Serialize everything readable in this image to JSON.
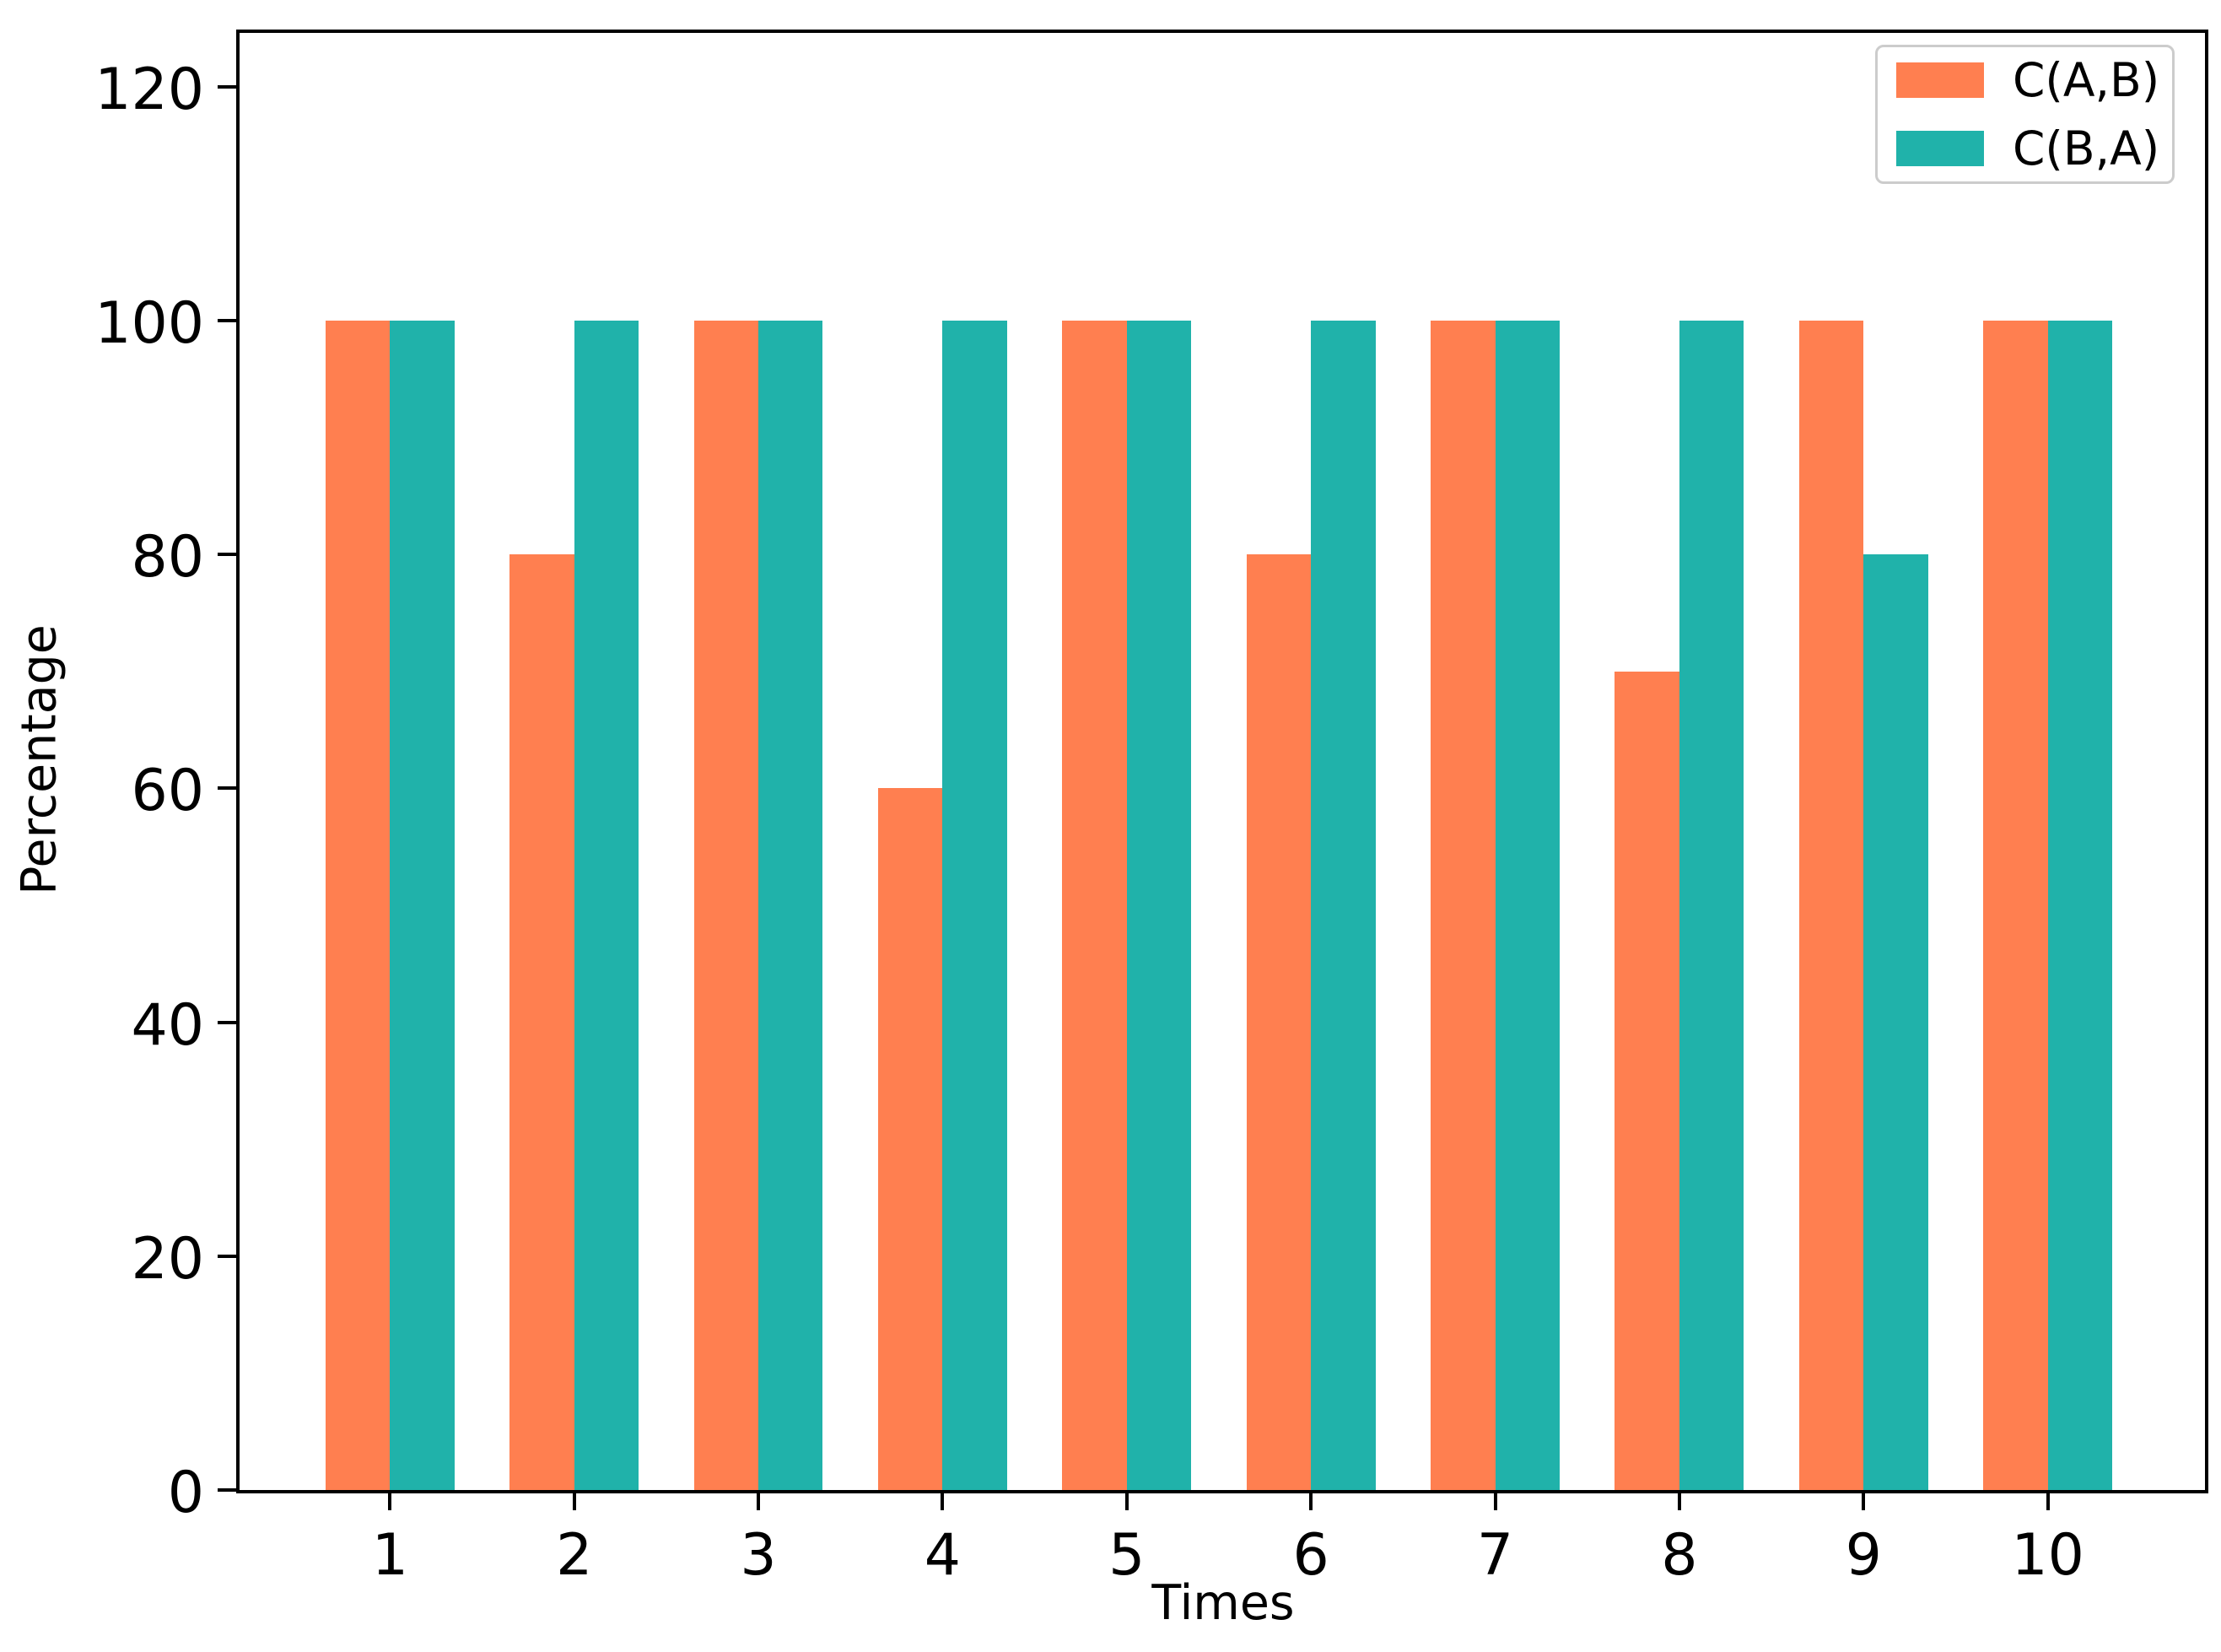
{
  "chart_data": {
    "type": "bar",
    "title": "",
    "xlabel": "Times",
    "ylabel": "Percentage",
    "categories": [
      "1",
      "2",
      "3",
      "4",
      "5",
      "6",
      "7",
      "8",
      "9",
      "10"
    ],
    "series": [
      {
        "name": "C(A,B)",
        "color": "#FF7F50",
        "values": [
          100,
          80,
          100,
          60,
          100,
          80,
          100,
          70,
          100,
          100
        ]
      },
      {
        "name": "C(B,A)",
        "color": "#20B2AA",
        "values": [
          100,
          100,
          100,
          100,
          100,
          100,
          100,
          100,
          80,
          100
        ]
      }
    ],
    "yticks": [
      0,
      20,
      40,
      60,
      80,
      100,
      120
    ],
    "ylim": [
      0,
      124.6
    ],
    "xlim": [
      0.165,
      10.835
    ],
    "bar_width": 0.35,
    "grid": false,
    "legend_position": "upper right",
    "frame": "full-box",
    "background_color": "#ffffff",
    "axis_color": "#000000"
  }
}
